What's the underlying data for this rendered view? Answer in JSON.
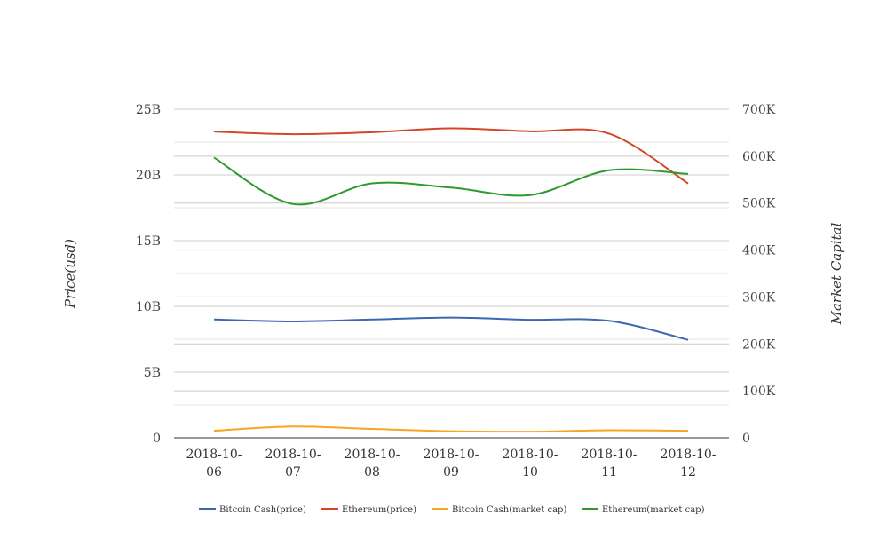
{
  "chart_data": {
    "type": "line",
    "categories": [
      "2018-10-06",
      "2018-10-07",
      "2018-10-08",
      "2018-10-09",
      "2018-10-10",
      "2018-10-11",
      "2018-10-12"
    ],
    "x_tick_lines": [
      [
        "2018-10-",
        "06"
      ],
      [
        "2018-10-",
        "07"
      ],
      [
        "2018-10-",
        "08"
      ],
      [
        "2018-10-",
        "09"
      ],
      [
        "2018-10-",
        "10"
      ],
      [
        "2018-10-",
        "11"
      ],
      [
        "2018-10-",
        "12"
      ]
    ],
    "left_axis": {
      "label": "Price(usd)",
      "ylim": [
        0,
        25000000000
      ],
      "ticks": [
        0,
        5000000000,
        10000000000,
        15000000000,
        20000000000,
        25000000000
      ],
      "tick_labels": [
        "0",
        "5B",
        "10B",
        "15B",
        "20B",
        "25B"
      ]
    },
    "right_axis": {
      "label": "Market Capital",
      "ylim": [
        0,
        700000
      ],
      "ticks": [
        0,
        100000,
        200000,
        300000,
        400000,
        500000,
        600000,
        700000
      ],
      "tick_labels": [
        "0",
        "100K",
        "200K",
        "300K",
        "400K",
        "500K",
        "600K",
        "700K"
      ]
    },
    "series": [
      {
        "name": "Bitcoin Cash(price)",
        "axis": "left",
        "color": "#3c67b5",
        "values": [
          9000000000,
          8850000000,
          9000000000,
          9150000000,
          8980000000,
          8900000000,
          7450000000
        ]
      },
      {
        "name": "Ethereum(price)",
        "axis": "left",
        "color": "#d2472a",
        "values": [
          23300000000,
          23100000000,
          23250000000,
          23550000000,
          23320000000,
          23150000000,
          19350000000
        ]
      },
      {
        "name": "Bitcoin Cash(market cap)",
        "axis": "right",
        "color": "#f5a623",
        "values": [
          15000,
          24000,
          19000,
          14000,
          13000,
          16000,
          15000
        ]
      },
      {
        "name": "Ethereum(market cap)",
        "axis": "right",
        "color": "#2d9a2d",
        "values": [
          597000,
          498000,
          542000,
          533000,
          517000,
          570000,
          562000
        ]
      }
    ],
    "grid": true,
    "legend": "bottom-center"
  }
}
